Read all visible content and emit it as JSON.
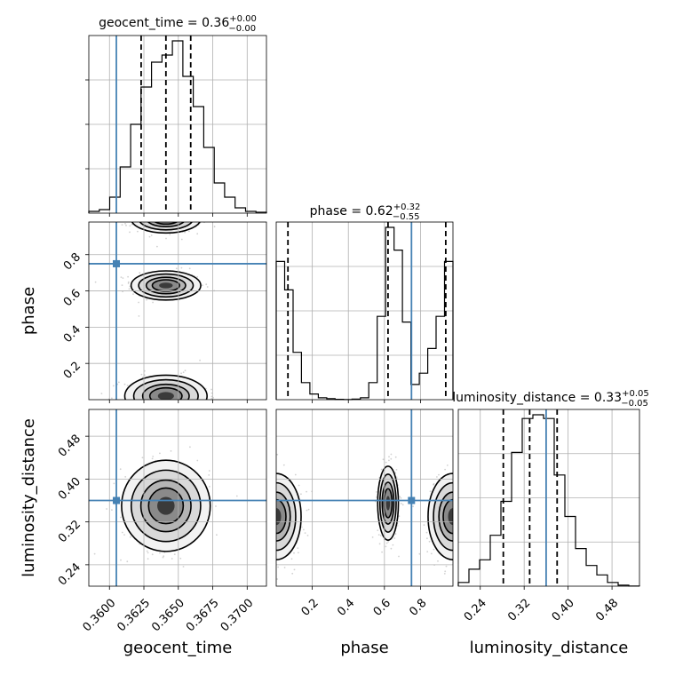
{
  "chart_data": {
    "type": "corner",
    "parameters": [
      "geocent_time",
      "phase",
      "luminosity_distance"
    ],
    "truths": {
      "geocent_time": 0.3605,
      "phase": 0.75,
      "luminosity_distance": 0.36
    },
    "titles": [
      {
        "param": "geocent_time",
        "text": "geocent_time = 0.36",
        "plus": "+0.00",
        "minus": "−0.00"
      },
      {
        "param": "phase",
        "text": "phase = 0.62",
        "plus": "+0.32",
        "minus": "−0.55"
      },
      {
        "param": "luminosity_distance",
        "text": "luminosity_distance = 0.33",
        "plus": "+0.05",
        "minus": "−0.05"
      }
    ],
    "ranges": {
      "geocent_time": [
        0.3585,
        0.3714
      ],
      "phase": [
        0.0,
        0.98
      ],
      "luminosity_distance": [
        0.2,
        0.53
      ]
    },
    "quantiles": {
      "geocent_time": [
        0.3623,
        0.3641,
        0.3659
      ],
      "phase": [
        0.065,
        0.62,
        0.94
      ],
      "luminosity_distance": [
        0.282,
        0.33,
        0.38
      ]
    },
    "ticks": {
      "geocent_time": [
        "0.3600",
        "0.3625",
        "0.3650",
        "0.3675",
        "0.3700"
      ],
      "phase": [
        "0.2",
        "0.4",
        "0.6",
        "0.8"
      ],
      "luminosity_distance": [
        "0.24",
        "0.32",
        "0.40",
        "0.48"
      ]
    },
    "axis_labels": {
      "x": [
        "geocent_time",
        "phase",
        "luminosity_distance"
      ],
      "y": [
        "phase",
        "luminosity_distance"
      ]
    },
    "histograms": {
      "geocent_time": [
        0.01,
        0.02,
        0.09,
        0.26,
        0.5,
        0.71,
        0.85,
        0.89,
        0.97,
        0.77,
        0.6,
        0.37,
        0.17,
        0.09,
        0.03,
        0.01,
        0.005
      ],
      "phase": [
        0.73,
        0.58,
        0.25,
        0.09,
        0.03,
        0.01,
        0.005,
        0.002,
        0.001,
        0.003,
        0.01,
        0.09,
        0.44,
        0.91,
        0.79,
        0.41,
        0.08,
        0.14,
        0.27,
        0.44,
        0.73
      ],
      "luminosity_distance": [
        0.02,
        0.09,
        0.14,
        0.27,
        0.45,
        0.71,
        0.89,
        0.91,
        0.89,
        0.59,
        0.37,
        0.2,
        0.11,
        0.06,
        0.02,
        0.005,
        0.001
      ]
    },
    "grid": true,
    "truth_color": "#4682b4",
    "hist_color": "#000000"
  }
}
